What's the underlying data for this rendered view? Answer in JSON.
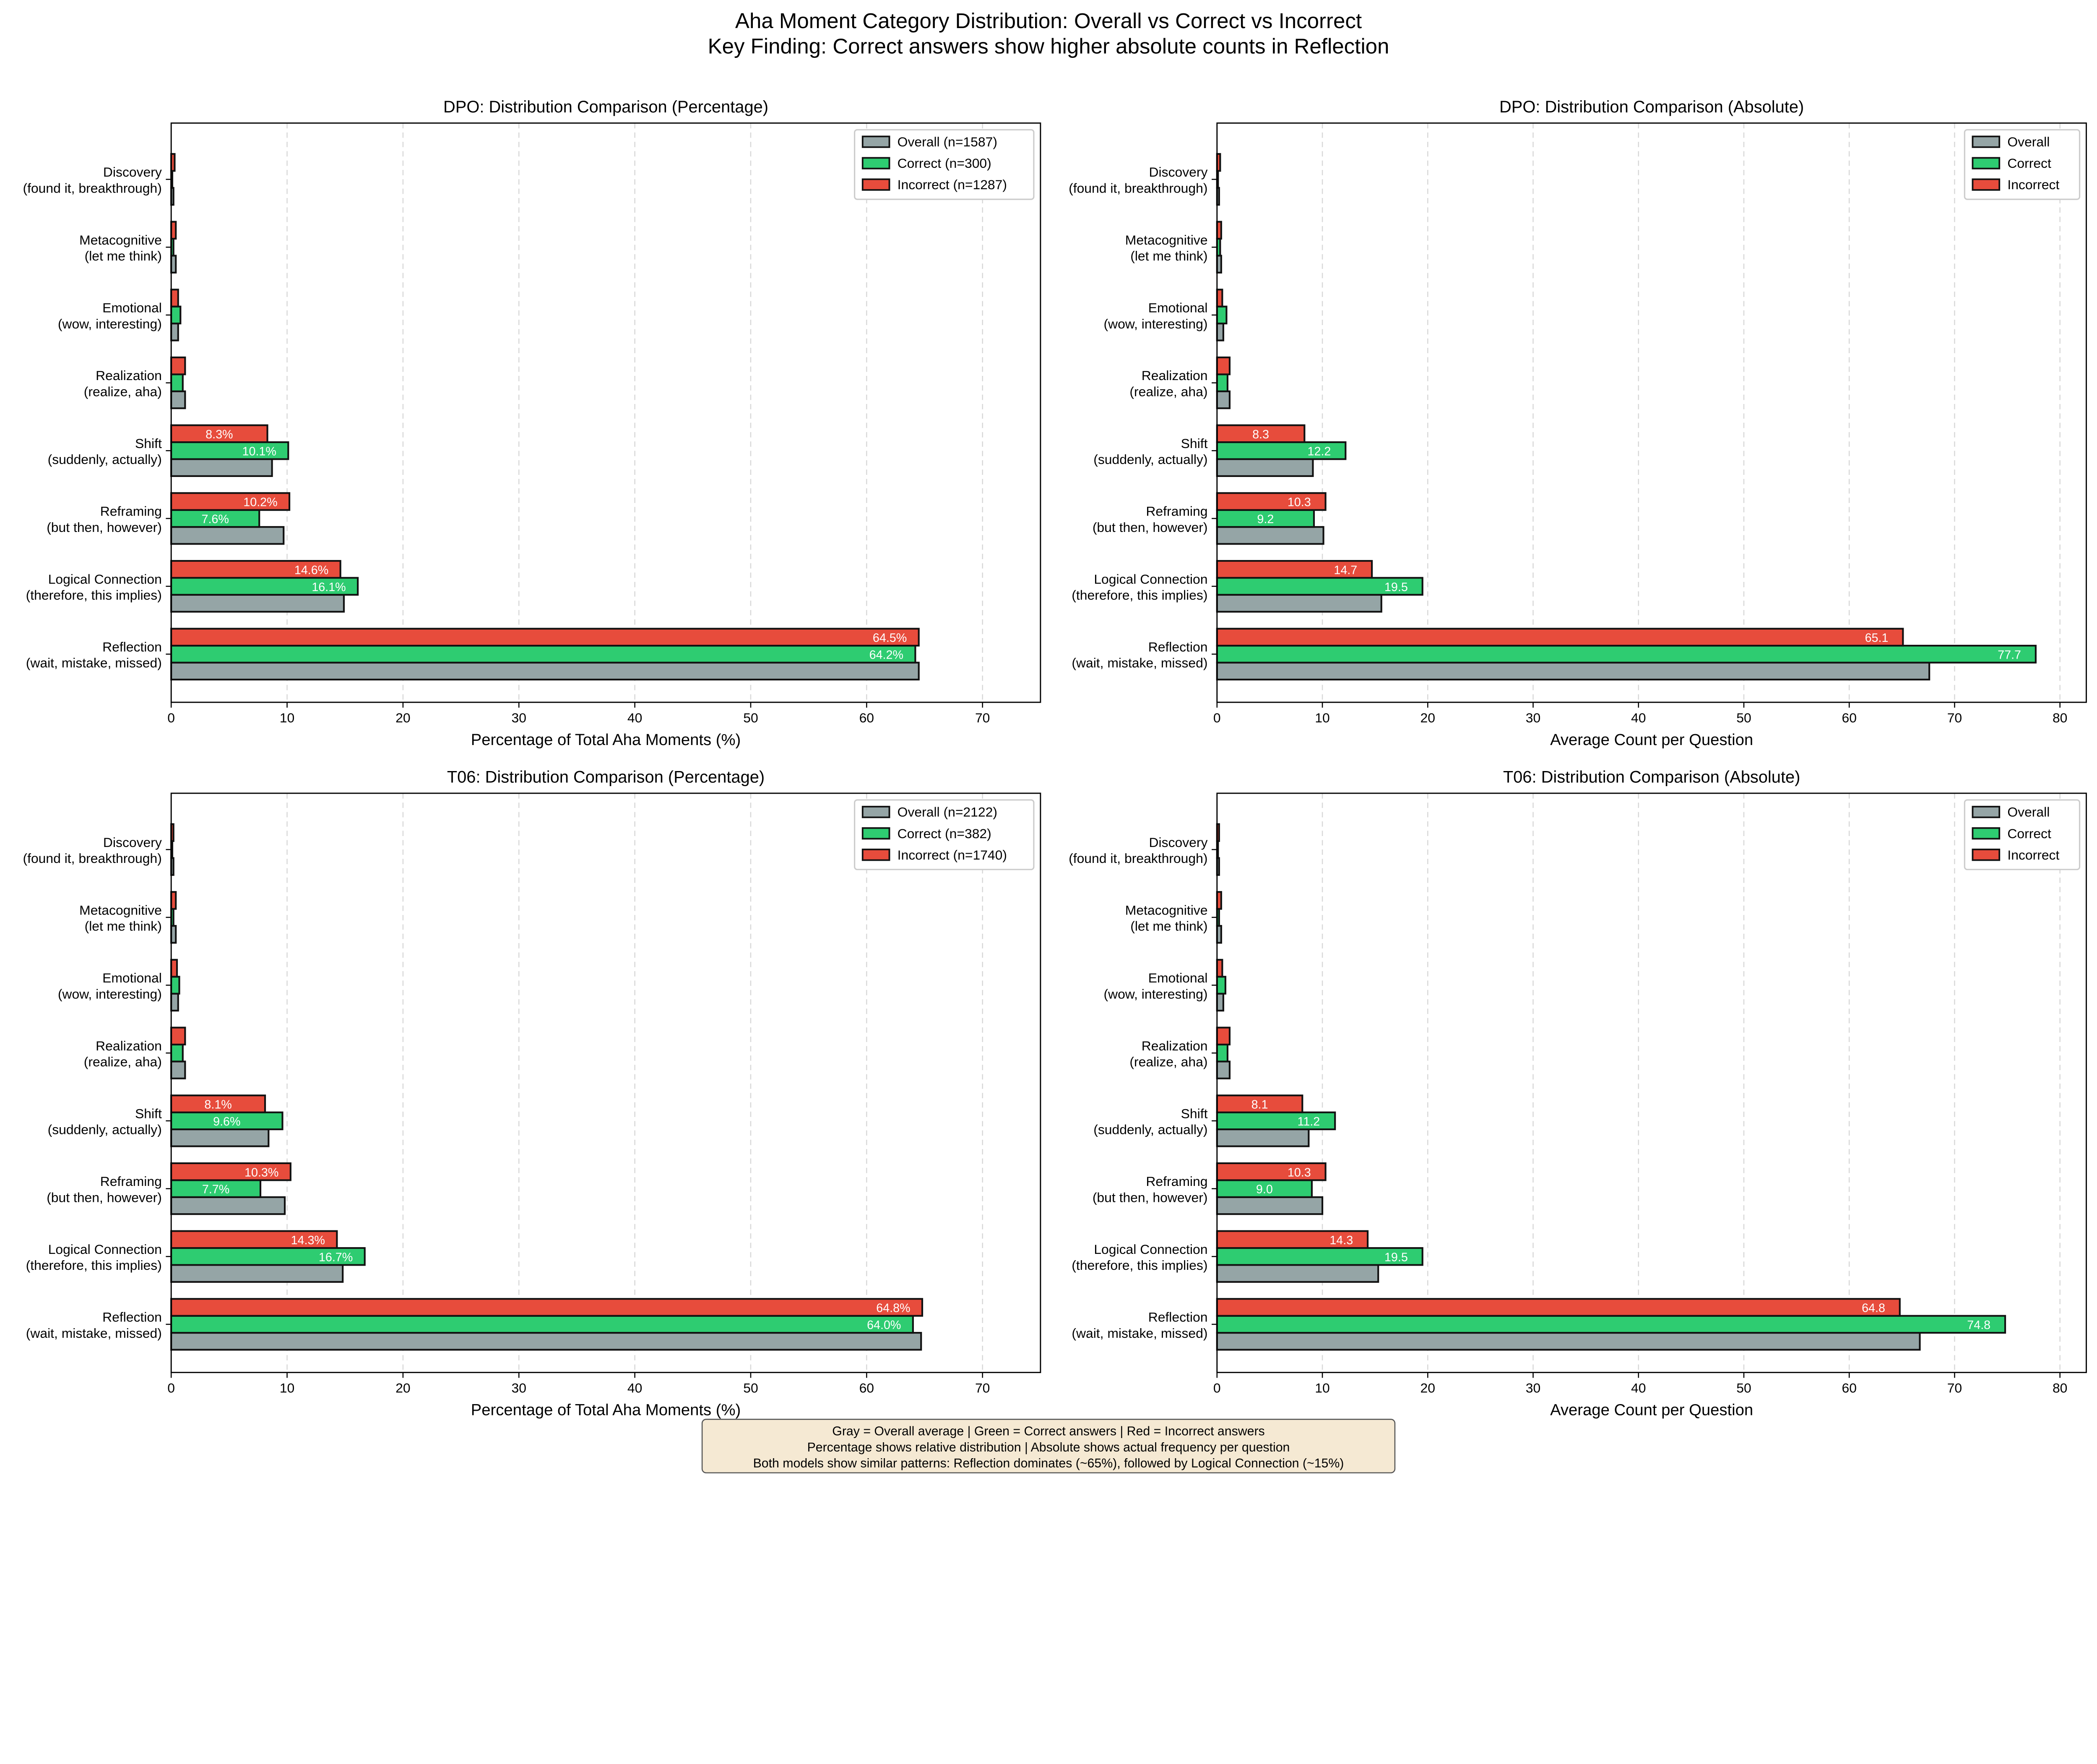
{
  "suptitle": [
    "Aha Moment Category Distribution: Overall vs Correct vs Incorrect",
    "Key Finding: Correct answers show higher absolute counts in Reflection"
  ],
  "colors": {
    "overall": "#95a5a6",
    "correct": "#2ecc71",
    "incorrect": "#e74c3c",
    "edge": "#111111",
    "footer_bg": "#f5e9d3"
  },
  "footer": [
    "Gray = Overall average | Green = Correct answers | Red = Incorrect answers",
    "Percentage shows relative distribution | Absolute shows actual frequency per question",
    "Both models show similar patterns: Reflection dominates (~65%), followed by Logical Connection (~15%)"
  ],
  "chart_data": [
    {
      "type": "bar",
      "orientation": "horizontal",
      "title": "DPO: Distribution Comparison (Percentage)",
      "xlabel": "Percentage of Total Aha Moments (%)",
      "ylabel": "",
      "xlim": [
        0,
        75
      ],
      "xticks": [
        0,
        10,
        20,
        30,
        40,
        50,
        60,
        70
      ],
      "grid": "x-dashed",
      "legend_position": "top-right",
      "categories": [
        "Reflection\n(wait, mistake, missed)",
        "Logical Connection\n(therefore, this implies)",
        "Reframing\n(but then, however)",
        "Shift\n(suddenly, actually)",
        "Realization\n(realize, aha)",
        "Emotional\n(wow, interesting)",
        "Metacognitive\n(let me think)",
        "Discovery\n(found it, breakthrough)"
      ],
      "series": [
        {
          "name": "Overall (n=1587)",
          "key": "overall",
          "values": [
            64.5,
            14.9,
            9.7,
            8.7,
            1.2,
            0.6,
            0.4,
            0.2
          ]
        },
        {
          "name": "Correct (n=300)",
          "key": "correct",
          "values": [
            64.2,
            16.1,
            7.6,
            10.1,
            1.0,
            0.8,
            0.2,
            0.1
          ],
          "labels": [
            "64.2%",
            "16.1%",
            "7.6%",
            "10.1%"
          ]
        },
        {
          "name": "Incorrect (n=1287)",
          "key": "incorrect",
          "values": [
            64.5,
            14.6,
            10.2,
            8.3,
            1.2,
            0.6,
            0.4,
            0.3
          ],
          "labels": [
            "64.5%",
            "14.6%",
            "10.2%",
            "8.3%"
          ]
        }
      ]
    },
    {
      "type": "bar",
      "orientation": "horizontal",
      "title": "DPO: Distribution Comparison (Absolute)",
      "xlabel": "Average Count per Question",
      "ylabel": "",
      "xlim": [
        0,
        82.5
      ],
      "xticks": [
        0,
        10,
        20,
        30,
        40,
        50,
        60,
        70,
        80
      ],
      "grid": "x-dashed",
      "legend_position": "top-right",
      "categories": [
        "Reflection\n(wait, mistake, missed)",
        "Logical Connection\n(therefore, this implies)",
        "Reframing\n(but then, however)",
        "Shift\n(suddenly, actually)",
        "Realization\n(realize, aha)",
        "Emotional\n(wow, interesting)",
        "Metacognitive\n(let me think)",
        "Discovery\n(found it, breakthrough)"
      ],
      "series": [
        {
          "name": "Overall",
          "key": "overall",
          "values": [
            67.6,
            15.6,
            10.1,
            9.1,
            1.2,
            0.6,
            0.4,
            0.2
          ]
        },
        {
          "name": "Correct",
          "key": "correct",
          "values": [
            77.7,
            19.5,
            9.2,
            12.2,
            1.0,
            0.9,
            0.3,
            0.1
          ],
          "labels": [
            "77.7",
            "19.5",
            "9.2",
            "12.2"
          ]
        },
        {
          "name": "Incorrect",
          "key": "incorrect",
          "values": [
            65.1,
            14.7,
            10.3,
            8.3,
            1.2,
            0.5,
            0.4,
            0.3
          ],
          "labels": [
            "65.1",
            "14.7",
            "10.3",
            "8.3"
          ]
        }
      ]
    },
    {
      "type": "bar",
      "orientation": "horizontal",
      "title": "T06: Distribution Comparison (Percentage)",
      "xlabel": "Percentage of Total Aha Moments (%)",
      "ylabel": "",
      "xlim": [
        0,
        75
      ],
      "xticks": [
        0,
        10,
        20,
        30,
        40,
        50,
        60,
        70
      ],
      "grid": "x-dashed",
      "legend_position": "top-right",
      "categories": [
        "Reflection\n(wait, mistake, missed)",
        "Logical Connection\n(therefore, this implies)",
        "Reframing\n(but then, however)",
        "Shift\n(suddenly, actually)",
        "Realization\n(realize, aha)",
        "Emotional\n(wow, interesting)",
        "Metacognitive\n(let me think)",
        "Discovery\n(found it, breakthrough)"
      ],
      "series": [
        {
          "name": "Overall (n=2122)",
          "key": "overall",
          "values": [
            64.7,
            14.8,
            9.8,
            8.4,
            1.2,
            0.6,
            0.4,
            0.2
          ]
        },
        {
          "name": "Correct (n=382)",
          "key": "correct",
          "values": [
            64.0,
            16.7,
            7.7,
            9.6,
            1.0,
            0.7,
            0.2,
            0.1
          ],
          "labels": [
            "64.0%",
            "16.7%",
            "7.7%",
            "9.6%"
          ]
        },
        {
          "name": "Incorrect (n=1740)",
          "key": "incorrect",
          "values": [
            64.8,
            14.3,
            10.3,
            8.1,
            1.2,
            0.5,
            0.4,
            0.2
          ],
          "labels": [
            "64.8%",
            "14.3%",
            "10.3%",
            "8.1%"
          ]
        }
      ]
    },
    {
      "type": "bar",
      "orientation": "horizontal",
      "title": "T06: Distribution Comparison (Absolute)",
      "xlabel": "Average Count per Question",
      "ylabel": "",
      "xlim": [
        0,
        82.5
      ],
      "xticks": [
        0,
        10,
        20,
        30,
        40,
        50,
        60,
        70,
        80
      ],
      "grid": "x-dashed",
      "legend_position": "top-right",
      "categories": [
        "Reflection\n(wait, mistake, missed)",
        "Logical Connection\n(therefore, this implies)",
        "Reframing\n(but then, however)",
        "Shift\n(suddenly, actually)",
        "Realization\n(realize, aha)",
        "Emotional\n(wow, interesting)",
        "Metacognitive\n(let me think)",
        "Discovery\n(found it, breakthrough)"
      ],
      "series": [
        {
          "name": "Overall",
          "key": "overall",
          "values": [
            66.7,
            15.3,
            10.0,
            8.7,
            1.2,
            0.6,
            0.4,
            0.2
          ]
        },
        {
          "name": "Correct",
          "key": "correct",
          "values": [
            74.8,
            19.5,
            9.0,
            11.2,
            1.0,
            0.8,
            0.2,
            0.1
          ],
          "labels": [
            "74.8",
            "19.5",
            "9.0",
            "11.2"
          ]
        },
        {
          "name": "Incorrect",
          "key": "incorrect",
          "values": [
            64.8,
            14.3,
            10.3,
            8.1,
            1.2,
            0.5,
            0.4,
            0.2
          ],
          "labels": [
            "64.8",
            "14.3",
            "10.3",
            "8.1"
          ]
        }
      ]
    }
  ]
}
